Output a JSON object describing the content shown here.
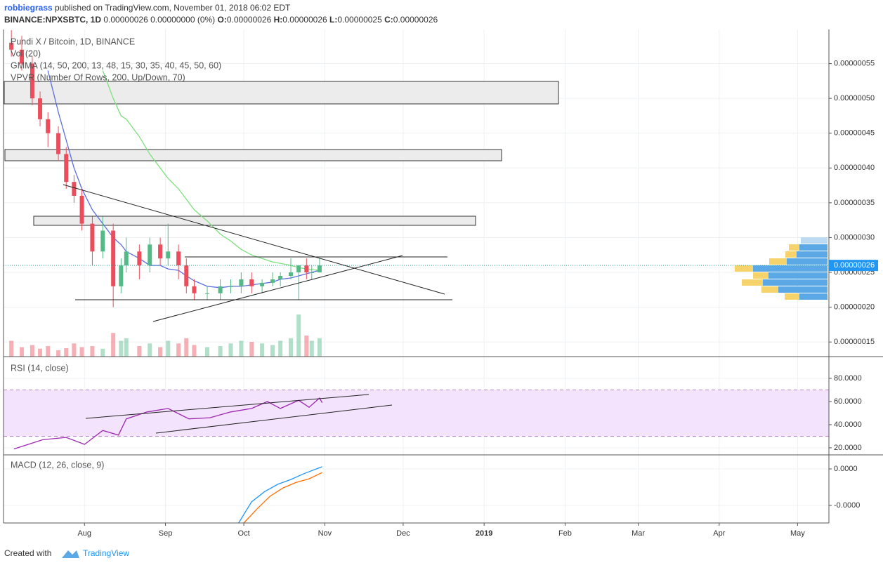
{
  "header": {
    "author": "robbiegrass",
    "published": "published on TradingView.com, November 01, 2018 06:02 EDT",
    "symbol": "BINANCE:NPXSBTC, 1D",
    "change": "0.00000026 0.00000000 (0%)",
    "quote": [
      {
        "key": "O:",
        "value": "0.00000026"
      },
      {
        "key": "H:",
        "value": "0.00000026"
      },
      {
        "key": "L:",
        "value": "0.00000025"
      },
      {
        "key": "C:",
        "value": "0.00000026"
      }
    ]
  },
  "chart_data": [
    {
      "type": "candlestick",
      "title": "Pundi X / Bitcoin, 1D, BINANCE",
      "indicators": [
        "Vol (20)",
        "GMMA (14, 50, 200, 13, 48, 15, 30, 35, 40, 45, 50, 60)",
        "VPVR (Number Of Rows, 200, Up/Down, 70)"
      ],
      "x": [
        3,
        7,
        11,
        14,
        17,
        21,
        24,
        27,
        30,
        34,
        38,
        42,
        45,
        47,
        52,
        56,
        60,
        63,
        67,
        70,
        73,
        78,
        83,
        87,
        91,
        95,
        99,
        103,
        106,
        110,
        113,
        116,
        118,
        121
      ],
      "open": [
        5.8e-07,
        5.7e-07,
        5.5e-07,
        5e-07,
        4.7e-07,
        4.5e-07,
        4.2e-07,
        3.8e-07,
        3.6e-07,
        3.2e-07,
        2.8e-07,
        3.1e-07,
        2.3e-07,
        2.6e-07,
        2.8e-07,
        2.6e-07,
        2.9e-07,
        2.7e-07,
        2.8e-07,
        2.6e-07,
        2.3e-07,
        2.2e-07,
        2.2e-07,
        2.3e-07,
        2.3e-07,
        2.4e-07,
        2.3e-07,
        2.35e-07,
        2.4e-07,
        2.45e-07,
        2.5e-07,
        2.6e-07,
        2.5e-07,
        2.5e-07
      ],
      "high": [
        5.98e-07,
        5.9e-07,
        5.6e-07,
        5.1e-07,
        4.8e-07,
        4.6e-07,
        4.3e-07,
        3.9e-07,
        3.7e-07,
        3.3e-07,
        3.3e-07,
        3.2e-07,
        2.7e-07,
        3e-07,
        2.9e-07,
        3e-07,
        3e-07,
        3.2e-07,
        2.9e-07,
        2.7e-07,
        2.4e-07,
        2.3e-07,
        2.4e-07,
        2.4e-07,
        2.5e-07,
        2.5e-07,
        2.4e-07,
        2.5e-07,
        2.5e-07,
        2.7e-07,
        2.6e-07,
        2.7e-07,
        2.6e-07,
        2.7e-07
      ],
      "low": [
        5.6e-07,
        5.4e-07,
        4.9e-07,
        4.6e-07,
        4.3e-07,
        4.1e-07,
        3.7e-07,
        3.5e-07,
        3.1e-07,
        2.6e-07,
        2.7e-07,
        2e-07,
        2.2e-07,
        2.5e-07,
        2.4e-07,
        2.5e-07,
        2.6e-07,
        2.6e-07,
        2.4e-07,
        2.2e-07,
        2.1e-07,
        2.1e-07,
        2.1e-07,
        2.2e-07,
        2.2e-07,
        2.2e-07,
        2.2e-07,
        2.3e-07,
        2.3e-07,
        2.4e-07,
        2.1e-07,
        2.4e-07,
        2.4e-07,
        2.5e-07
      ],
      "close": [
        5.7e-07,
        5.5e-07,
        5e-07,
        4.7e-07,
        4.5e-07,
        4.2e-07,
        3.8e-07,
        3.6e-07,
        3.2e-07,
        2.8e-07,
        3.1e-07,
        2.3e-07,
        2.6e-07,
        2.8e-07,
        2.6e-07,
        2.9e-07,
        2.7e-07,
        2.8e-07,
        2.6e-07,
        2.3e-07,
        2.2e-07,
        2.2e-07,
        2.3e-07,
        2.3e-07,
        2.4e-07,
        2.3e-07,
        2.35e-07,
        2.4e-07,
        2.45e-07,
        2.5e-07,
        2.6e-07,
        2.5e-07,
        2.5e-07,
        2.6e-07
      ],
      "volume": [
        30,
        18,
        22,
        15,
        20,
        12,
        16,
        25,
        18,
        20,
        15,
        45,
        30,
        35,
        20,
        25,
        18,
        30,
        25,
        35,
        22,
        18,
        20,
        25,
        30,
        28,
        25,
        22,
        30,
        35,
        80,
        40,
        30,
        35
      ],
      "up_color": "#53b987",
      "down_color": "#eb4d5c",
      "series": [
        {
          "color": "#5b6ee1",
          "values": [
            null,
            null,
            null,
            null,
            5.4e-07,
            4.8e-07,
            4.4e-07,
            4e-07,
            3.7e-07,
            3.4e-07,
            3.2e-07,
            3e-07,
            2.9e-07,
            2.8e-07,
            2.7e-07,
            2.6e-07,
            2.6e-07,
            2.55e-07,
            2.53e-07,
            2.45e-07,
            2.38e-07,
            2.3e-07,
            2.28e-07,
            2.3e-07,
            2.3e-07,
            2.32e-07,
            2.34e-07,
            2.36e-07,
            2.4e-07,
            2.42e-07,
            2.45e-07,
            2.48e-07,
            2.5e-07,
            2.53e-07
          ]
        },
        {
          "color": "#7ee07e",
          "values": [
            null,
            null,
            null,
            null,
            null,
            null,
            null,
            null,
            null,
            null,
            5.4e-07,
            5e-07,
            4.75e-07,
            4.7e-07,
            4.45e-07,
            4.2e-07,
            4e-07,
            3.85e-07,
            3.7e-07,
            3.55e-07,
            3.4e-07,
            3.24e-07,
            3.05e-07,
            2.95e-07,
            2.83e-07,
            2.75e-07,
            2.7e-07,
            2.65e-07,
            2.63e-07,
            2.6e-07,
            2.57e-07,
            2.55e-07,
            2.54e-07,
            2.53e-07
          ]
        }
      ],
      "last_price": {
        "value": 2.6e-07,
        "label": "0.00000026"
      },
      "xlim": [
        0,
        316
      ],
      "xticks": [
        {
          "value": 31,
          "label": "Aug"
        },
        {
          "value": 62,
          "label": "Sep"
        },
        {
          "value": 92,
          "label": "Oct"
        },
        {
          "value": 123,
          "label": "Nov"
        },
        {
          "value": 153,
          "label": "Dec"
        },
        {
          "value": 184,
          "label": "2019"
        },
        {
          "value": 215,
          "label": "Feb"
        },
        {
          "value": 243,
          "label": "Mar"
        },
        {
          "value": 274,
          "label": "Apr"
        },
        {
          "value": 304,
          "label": "May"
        }
      ],
      "ylim": [
        1.29e-07,
        5.99e-07
      ],
      "yticks": [
        {
          "value": 1.5e-07,
          "label": "0.00000015"
        },
        {
          "value": 2e-07,
          "label": "0.00000020"
        },
        {
          "value": 2.5e-07,
          "label": "0.00000025"
        },
        {
          "value": 3e-07,
          "label": "0.00000030"
        },
        {
          "value": 3.5e-07,
          "label": "0.00000035"
        },
        {
          "value": 4e-07,
          "label": "0.00000040"
        },
        {
          "value": 4.5e-07,
          "label": "0.00000045"
        },
        {
          "value": 5e-07,
          "label": "0.00000050"
        },
        {
          "value": 5.5e-07,
          "label": "0.00000055"
        }
      ]
    },
    {
      "type": "line",
      "title": "RSI (14, close)",
      "x": [
        4,
        15,
        24,
        31,
        38,
        44,
        47,
        55,
        63,
        71,
        79,
        87,
        95,
        101,
        106,
        113,
        117,
        121,
        122
      ],
      "series": [
        {
          "color": "#9c27b0",
          "values": [
            19,
            27,
            29,
            23,
            35,
            31,
            45,
            51,
            54,
            45,
            46,
            51,
            54,
            60,
            54,
            61,
            55,
            63,
            59
          ]
        }
      ],
      "bands": [
        30,
        70
      ],
      "band_color": "#f3e3fc",
      "xlim": [
        0,
        316
      ],
      "ylim": [
        13.9,
        98.8
      ],
      "yticks": [
        {
          "value": 20,
          "label": "20.0000"
        },
        {
          "value": 40,
          "label": "40.0000"
        },
        {
          "value": 60,
          "label": "60.0000"
        },
        {
          "value": 80,
          "label": "80.0000"
        }
      ]
    },
    {
      "type": "line",
      "title": "MACD (12, 26, close, 9)",
      "series": [
        {
          "color": "#2196f3",
          "x": [
            90,
            95,
            100,
            105,
            110,
            115,
            122
          ],
          "values": [
            -1.48e-09,
            -9e-10,
            -6.2e-10,
            -4.2e-10,
            -2.9e-10,
            -1.3e-10,
            6e-11
          ]
        },
        {
          "color": "#ff6d00",
          "x": [
            92,
            97,
            102,
            107,
            112,
            117,
            122
          ],
          "values": [
            -1.48e-09,
            -1.1e-09,
            -7.5e-10,
            -5.2e-10,
            -3.7e-10,
            -2.7e-10,
            -1e-10
          ]
        }
      ],
      "xlim": [
        0,
        316
      ],
      "ylim": [
        -1.48e-09,
        3.85e-10
      ],
      "yticks": [
        {
          "value": -1e-09,
          "label": "-0.0000"
        },
        {
          "value": 0,
          "label": "0.0000"
        }
      ]
    }
  ],
  "footer": {
    "created": "Created with",
    "brand": "TradingView"
  }
}
